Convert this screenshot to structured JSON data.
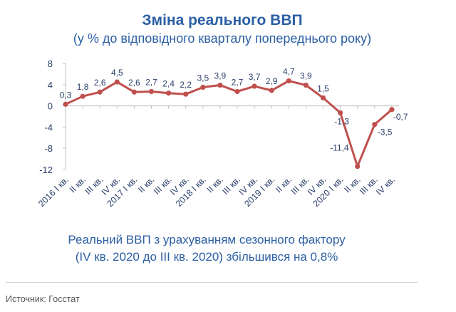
{
  "chart_data": {
    "type": "line",
    "title": "Зміна реального ВВП",
    "subtitle": "(у % до відповідного кварталу попереднього року)",
    "categories": [
      "2016 I кв.",
      "II кв.",
      "III кв.",
      "IV кв.",
      "2017 I кв.",
      "II кв.",
      "III кв.",
      "IV кв.",
      "2018 I кв.",
      "II кв.",
      "III кв.",
      "IV кв.",
      "2019 I кв.",
      "II кв.",
      "III кв.",
      "IV кв.",
      "2020 I кв.",
      "II кв.",
      "III кв.",
      "IV кв."
    ],
    "values": [
      0.3,
      1.8,
      2.6,
      4.5,
      2.6,
      2.7,
      2.4,
      2.2,
      3.5,
      3.9,
      2.7,
      3.7,
      2.9,
      4.7,
      3.9,
      1.5,
      -1.3,
      -11.4,
      -3.5,
      -0.7
    ],
    "point_labels": [
      "0,3",
      "1,8",
      "2,6",
      "4,5",
      "2,6",
      "2,7",
      "2,4",
      "2,2",
      "3,5",
      "3,9",
      "2,7",
      "3,7",
      "2,9",
      "4,7",
      "3,9",
      "1,5",
      "-1,3",
      "-11,4",
      "-3,5",
      "-0,7"
    ],
    "yticks": [
      8,
      4,
      0,
      -4,
      -8,
      -12
    ],
    "ylim": [
      -12,
      8
    ],
    "grid": false,
    "line_color": "#c0504d"
  },
  "note": {
    "line1": "Реальний ВВП з урахуванням сезонного фактору",
    "line2": "(IV кв. 2020 до III кв. 2020) збільшився на 0,8%"
  },
  "source": "Источник: Госстат",
  "colors": {
    "title": "#2b5fa4",
    "text": "#2a3f6a",
    "line": "#c0504d"
  }
}
